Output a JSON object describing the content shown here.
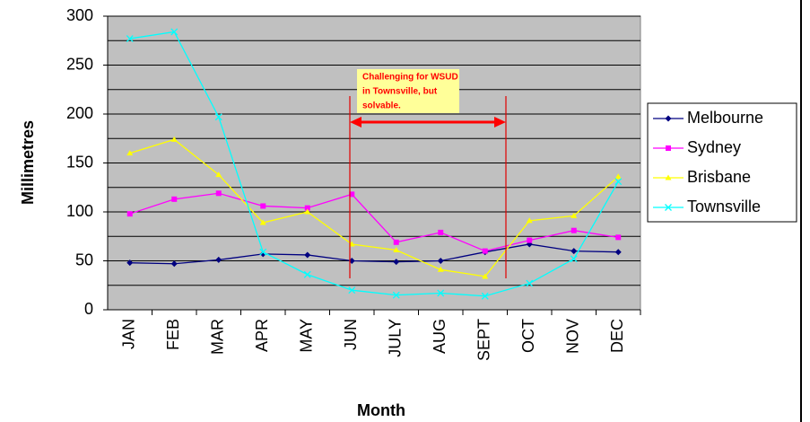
{
  "chart_data": {
    "type": "line",
    "x_label": "Month",
    "y_label": "Millimetres",
    "categories": [
      "JAN",
      "FEB",
      "MAR",
      "APR",
      "MAY",
      "JUN",
      "JULY",
      "AUG",
      "SEPT",
      "OCT",
      "NOV",
      "DEC"
    ],
    "series": [
      {
        "name": "Melbourne",
        "color": "#000080",
        "marker": "diamond",
        "values": [
          48,
          47,
          51,
          57,
          56,
          50,
          49,
          50,
          59,
          67,
          60,
          59
        ]
      },
      {
        "name": "Sydney",
        "color": "#ff00ff",
        "marker": "square",
        "values": [
          98,
          113,
          119,
          106,
          104,
          118,
          69,
          79,
          60,
          71,
          81,
          74
        ]
      },
      {
        "name": "Brisbane",
        "color": "#ffff00",
        "marker": "triangle",
        "values": [
          160,
          174,
          138,
          89,
          100,
          67,
          61,
          41,
          34,
          91,
          96,
          136
        ]
      },
      {
        "name": "Townsville",
        "color": "#00ffff",
        "marker": "x",
        "values": [
          277,
          284,
          197,
          59,
          36,
          20,
          15,
          17,
          14,
          27,
          52,
          131
        ]
      }
    ],
    "ylim": [
      0,
      300
    ],
    "yticks": [
      0,
      50,
      100,
      150,
      200,
      250,
      300
    ],
    "y_minor_grid": [
      25,
      75,
      125,
      175,
      225,
      275
    ],
    "grid": true,
    "legend": "right",
    "annotation": [
      "Challenging for WSUD",
      "in Townsville, but",
      "solvable."
    ]
  }
}
